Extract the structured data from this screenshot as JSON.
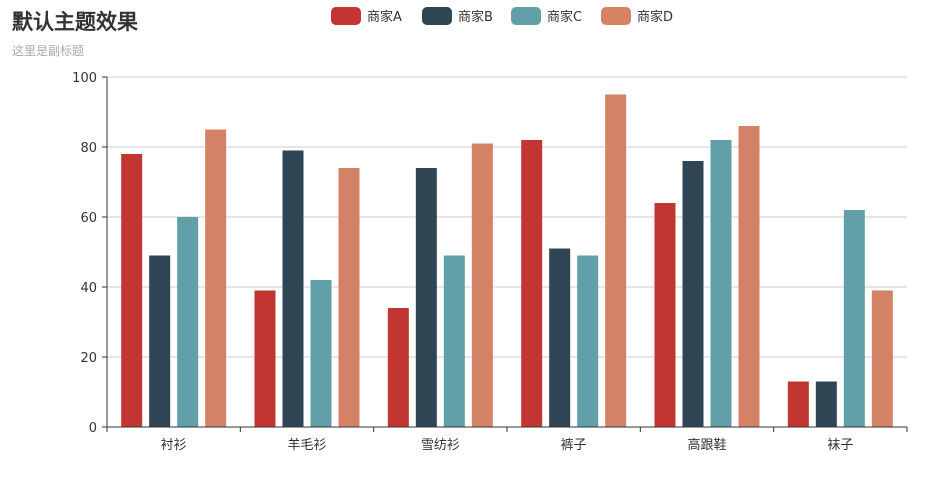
{
  "chart_data": {
    "type": "bar",
    "title": "默认主题效果",
    "subtitle": "这里是副标题",
    "categories": [
      "衬衫",
      "羊毛衫",
      "雪纺衫",
      "裤子",
      "高跟鞋",
      "袜子"
    ],
    "series": [
      {
        "name": "商家A",
        "color": "#c23531",
        "values": [
          78,
          39,
          34,
          82,
          64,
          13
        ]
      },
      {
        "name": "商家B",
        "color": "#2f4554",
        "values": [
          49,
          79,
          74,
          51,
          76,
          13
        ]
      },
      {
        "name": "商家C",
        "color": "#61a0a8",
        "values": [
          60,
          42,
          49,
          49,
          82,
          62
        ]
      },
      {
        "name": "商家D",
        "color": "#d48265",
        "values": [
          85,
          74,
          81,
          95,
          86,
          39
        ]
      }
    ],
    "ylim": [
      0,
      100
    ],
    "yticks": [
      0,
      20,
      40,
      60,
      80,
      100
    ],
    "grid": true,
    "legend_position": "top-center"
  }
}
